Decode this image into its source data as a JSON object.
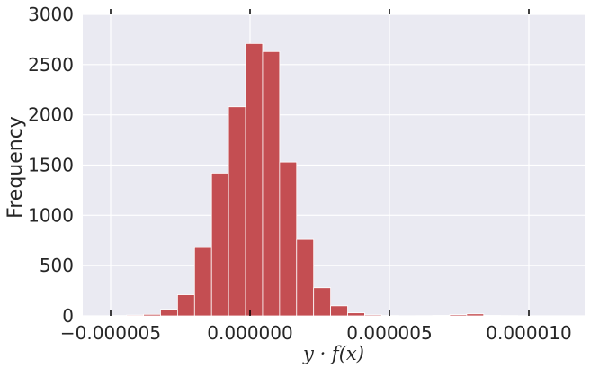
{
  "chart_data": {
    "type": "histogram",
    "x_label": "y · f(x)",
    "y_label": "Frequency",
    "bins": [
      -5.65e-06,
      -5.04e-06,
      -4.43e-06,
      -3.82e-06,
      -3.21e-06,
      -2.6e-06,
      -1.99e-06,
      -1.38e-06,
      -7.7e-07,
      -1.6e-07,
      4.5e-07,
      1.06e-06,
      1.67e-06,
      2.28e-06,
      2.89e-06,
      3.5e-06,
      4.11e-06,
      4.72e-06,
      5.33e-06,
      5.94e-06,
      6.55e-06,
      7.16e-06,
      7.77e-06,
      8.38e-06,
      8.99e-06,
      9.6e-06,
      1.021e-05,
      1.082e-05,
      1.143e-05
    ],
    "counts": [
      0,
      3,
      8,
      15,
      65,
      210,
      680,
      1420,
      2080,
      2710,
      2630,
      1530,
      760,
      280,
      100,
      30,
      10,
      3,
      1,
      2,
      5,
      12,
      20,
      5,
      3,
      1,
      0,
      0
    ],
    "color": "#c44e52",
    "xlim": [
      -6e-06,
      1.2e-05
    ],
    "xticks": [
      {
        "value": -5e-06,
        "label": "−0.000005"
      },
      {
        "value": 0,
        "label": "0.000000"
      },
      {
        "value": 5e-06,
        "label": "0.000005"
      },
      {
        "value": 1e-05,
        "label": "0.000010"
      }
    ],
    "ylim": [
      0,
      3000
    ],
    "yticks": [
      0,
      500,
      1000,
      1500,
      2000,
      2500,
      3000
    ],
    "grid": true
  }
}
